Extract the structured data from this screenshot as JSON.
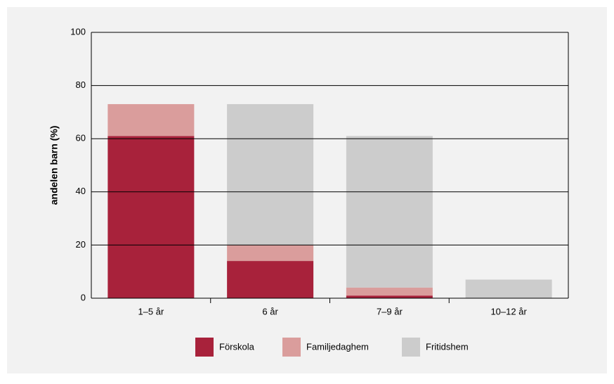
{
  "chart_data": {
    "type": "stacked_bar",
    "y_label": "andelen barn (%)",
    "categories": [
      "1–5 år",
      "6 år",
      "7–9 år",
      "10–12 år"
    ],
    "series": [
      {
        "name": "Förskola",
        "color": "#a8223b",
        "values": [
          61,
          14,
          1,
          0
        ]
      },
      {
        "name": "Familjedaghem",
        "color": "#da9d9c",
        "values": [
          12,
          6,
          3,
          0
        ]
      },
      {
        "name": "Fritidshem",
        "color": "#cccccc",
        "values": [
          0,
          53,
          57,
          7
        ]
      }
    ],
    "ylim": [
      0,
      100
    ],
    "yticks": [
      0,
      20,
      40,
      60,
      80,
      100
    ],
    "grid": true
  }
}
